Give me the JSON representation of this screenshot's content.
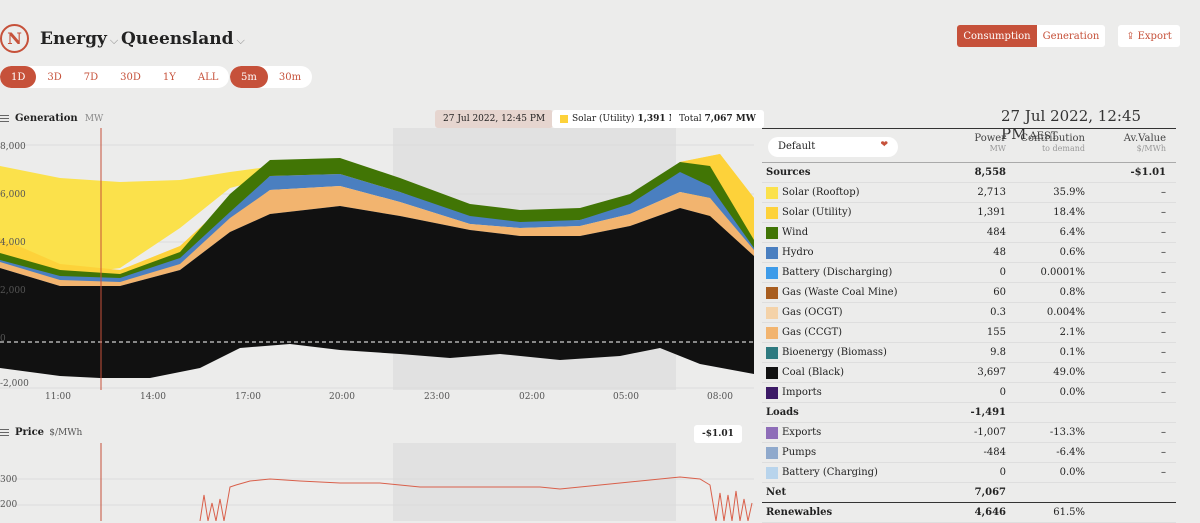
{
  "header": {
    "logo_text": "N",
    "menu_energy": "Energy",
    "menu_region": "Queensland",
    "btn_consumption": "Consumption",
    "btn_generation": "Generation",
    "btn_export": "Export",
    "accent": "#c6513a"
  },
  "ranges": [
    "1D",
    "3D",
    "7D",
    "30D",
    "1Y",
    "ALL"
  ],
  "intervals": [
    "5m",
    "30m"
  ],
  "generation": {
    "title": "Generation",
    "unit": "MW",
    "hover_time": "27 Jul 2022, 12:45 PM",
    "hover_series": "Solar (Utility)",
    "hover_value": "1,391 MW",
    "total_label": "Total",
    "total_value": "7,067 MW",
    "y_ticks": [
      "8,000",
      "6,000",
      "4,000",
      "2,000",
      "0",
      "-2,000"
    ],
    "x_ticks": [
      "11:00",
      "14:00",
      "17:00",
      "20:00",
      "23:00",
      "02:00",
      "05:00",
      "08:00"
    ]
  },
  "price": {
    "title": "Price",
    "unit": "$/MWh",
    "hover_value": "-$1.01",
    "y_ticks": [
      "300",
      "200"
    ]
  },
  "right": {
    "date": "27 Jul 2022, 12:45 PM",
    "tz": "AEST",
    "select_value": "Default",
    "col_power": "Power",
    "col_power_unit": "MW",
    "col_contrib": "Contribution",
    "col_contrib_unit": "to demand",
    "col_av": "Av.Value",
    "col_av_unit": "$/MWh",
    "rows": [
      {
        "name": "Sources",
        "group": true,
        "power": "8,558",
        "contrib": "",
        "av": "-$1.01",
        "color": ""
      },
      {
        "name": "Solar (Rooftop)",
        "power": "2,713",
        "contrib": "35.9%",
        "av": "–",
        "color": "#fbe14b"
      },
      {
        "name": "Solar (Utility)",
        "power": "1,391",
        "contrib": "18.4%",
        "av": "–",
        "color": "#fdd23a"
      },
      {
        "name": "Wind",
        "power": "484",
        "contrib": "6.4%",
        "av": "–",
        "color": "#417505"
      },
      {
        "name": "Hydro",
        "power": "48",
        "contrib": "0.6%",
        "av": "–",
        "color": "#4a7fc0"
      },
      {
        "name": "Battery (Discharging)",
        "power": "0",
        "contrib": "0.0001%",
        "av": "–",
        "color": "#3d9be9"
      },
      {
        "name": "Gas (Waste Coal Mine)",
        "power": "60",
        "contrib": "0.8%",
        "av": "–",
        "color": "#a85d1f"
      },
      {
        "name": "Gas (OCGT)",
        "power": "0.3",
        "contrib": "0.004%",
        "av": "–",
        "color": "#f4d2a8"
      },
      {
        "name": "Gas (CCGT)",
        "power": "155",
        "contrib": "2.1%",
        "av": "–",
        "color": "#f2b46f"
      },
      {
        "name": "Bioenergy (Biomass)",
        "power": "9.8",
        "contrib": "0.1%",
        "av": "–",
        "color": "#2e7a80"
      },
      {
        "name": "Coal (Black)",
        "power": "3,697",
        "contrib": "49.0%",
        "av": "–",
        "color": "#111111"
      },
      {
        "name": "Imports",
        "power": "0",
        "contrib": "0.0%",
        "av": "–",
        "color": "#3c1a66"
      },
      {
        "name": "Loads",
        "group": true,
        "power": "-1,491",
        "contrib": "",
        "av": "",
        "color": ""
      },
      {
        "name": "Exports",
        "power": "-1,007",
        "contrib": "-13.3%",
        "av": "–",
        "color": "#8e6db8"
      },
      {
        "name": "Pumps",
        "power": "-484",
        "contrib": "-6.4%",
        "av": "–",
        "color": "#8fa9cc"
      },
      {
        "name": "Battery (Charging)",
        "power": "0",
        "contrib": "0.0%",
        "av": "–",
        "color": "#b8d4ec"
      },
      {
        "name": "Net",
        "group": true,
        "power": "7,067",
        "contrib": "",
        "av": "",
        "color": ""
      },
      {
        "name": "Renewables",
        "group": true,
        "power": "4,646",
        "contrib": "61.5%",
        "av": "",
        "color": ""
      }
    ]
  }
}
